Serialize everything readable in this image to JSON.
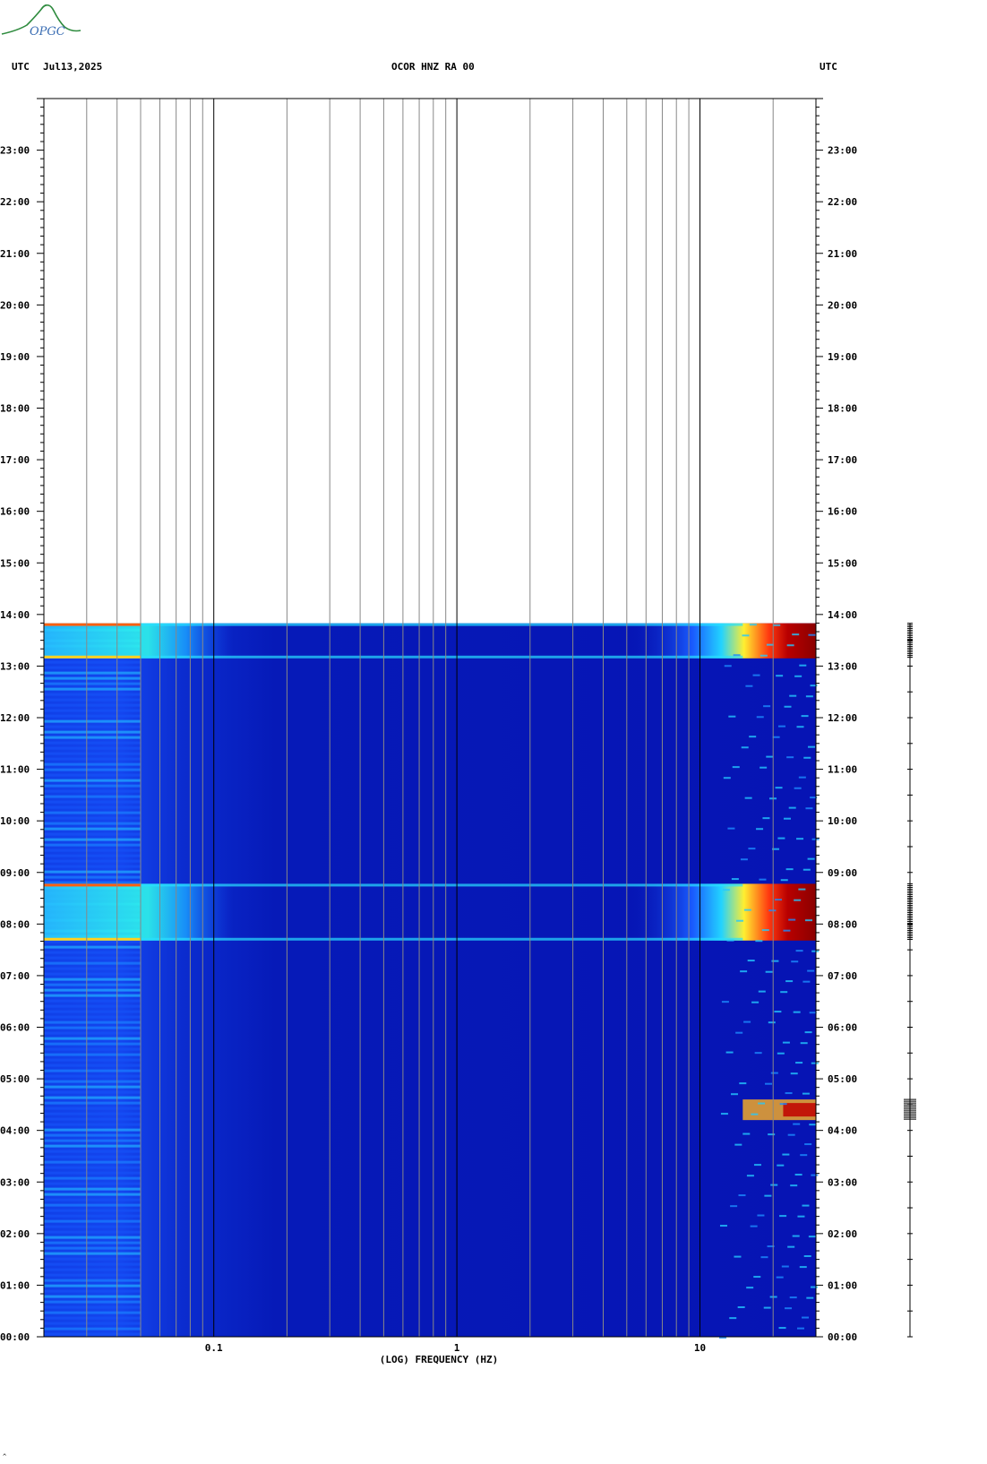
{
  "header": {
    "logo_text": "OPGC",
    "left_utc": "UTC",
    "date": "Jul13,2025",
    "station": "OCOR HNZ RA 00",
    "right_utc": "UTC"
  },
  "chart_data": {
    "type": "heatmap",
    "title": "OCOR HNZ RA 00",
    "xlabel": "(LOG) FREQUENCY (HZ)",
    "ylabel": "UTC",
    "x_scale": "log",
    "xlim": [
      0.02,
      30
    ],
    "x_tick_labels": [
      "0.1",
      "1",
      "10"
    ],
    "x_ticks": [
      0.1,
      1,
      10
    ],
    "ylim_hours": [
      0,
      24
    ],
    "y_tick_labels": [
      "23:00",
      "22:00",
      "21:00",
      "20:00",
      "19:00",
      "18:00",
      "17:00",
      "16:00",
      "15:00",
      "14:00",
      "13:00",
      "12:00",
      "11:00",
      "10:00",
      "09:00",
      "08:00",
      "07:00",
      "06:00",
      "05:00",
      "04:00",
      "03:00",
      "02:00",
      "01:00",
      "00:00"
    ],
    "data_end_hour": 13.83,
    "colormap": [
      "#00008b",
      "#0000ff",
      "#00bfff",
      "#00ffff",
      "#ffff00",
      "#ff0000",
      "#8b0000"
    ],
    "events": [
      {
        "start_hour": 7.68,
        "end_hour": 8.78,
        "level": "strong"
      },
      {
        "start_hour": 13.15,
        "end_hour": 13.83,
        "level": "strong"
      },
      {
        "start_hour": 4.2,
        "end_hour": 4.6,
        "level": "moderate"
      }
    ],
    "grid": true
  },
  "trace": {
    "description_marks": [
      "bursts at 04:20, 08:15, 13:30"
    ]
  }
}
